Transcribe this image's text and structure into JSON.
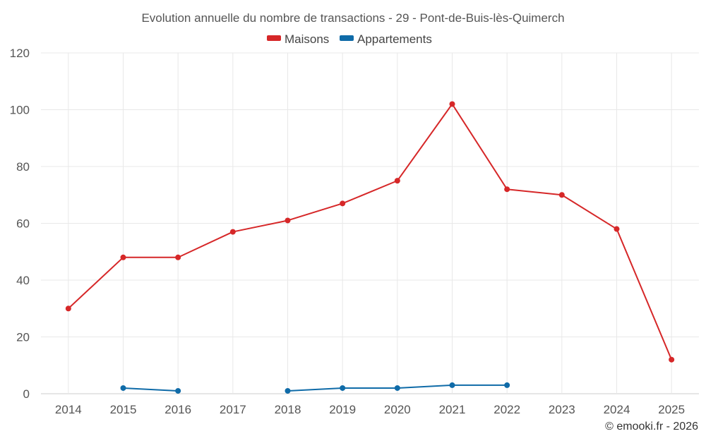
{
  "chart_data": {
    "type": "line",
    "title": "Evolution annuelle du nombre de transactions - 29 - Pont-de-Buis-lès-Quimerch",
    "categories": [
      "2014",
      "2015",
      "2016",
      "2017",
      "2018",
      "2019",
      "2020",
      "2021",
      "2022",
      "2023",
      "2024",
      "2025"
    ],
    "series": [
      {
        "name": "Maisons",
        "color": "#d62728",
        "values": [
          30,
          48,
          48,
          57,
          61,
          67,
          75,
          102,
          72,
          70,
          58,
          12
        ]
      },
      {
        "name": "Appartements",
        "color": "#0f6ba8",
        "values": [
          null,
          2,
          1,
          null,
          1,
          2,
          2,
          3,
          3,
          null,
          null,
          null
        ]
      }
    ],
    "ylim": [
      0,
      120
    ],
    "yticks": [
      0,
      20,
      40,
      60,
      80,
      100,
      120
    ],
    "legend_position": "top-center",
    "grid": true,
    "xlabel": "",
    "ylabel": ""
  },
  "credit": "© emooki.fr - 2026"
}
